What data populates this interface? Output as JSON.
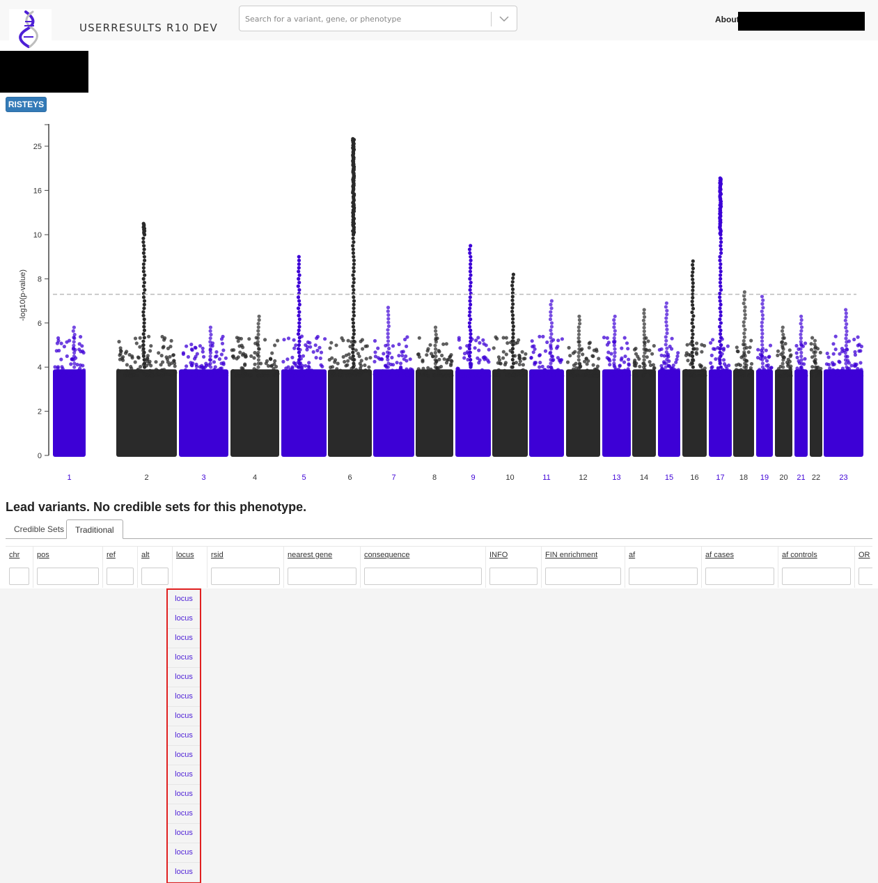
{
  "header": {
    "app_title": "USERRESULTS R10 DEV",
    "search_placeholder": "Search for a variant, gene, or phenotype",
    "about_label": "About"
  },
  "risteys_label": "RISTEYS",
  "chart_data": {
    "type": "scatter",
    "title": "",
    "ylabel": "-log10(p-value)",
    "xlabel": "",
    "y_tick_labels": [
      "0",
      "2",
      "4",
      "6",
      "8",
      "10",
      "16",
      "25"
    ],
    "significance_line": 7.3,
    "chromosomes": [
      "1",
      "2",
      "3",
      "4",
      "5",
      "6",
      "7",
      "8",
      "9",
      "10",
      "11",
      "12",
      "13",
      "14",
      "15",
      "16",
      "17",
      "18",
      "19",
      "20",
      "21",
      "22",
      "23"
    ],
    "series_colors": {
      "odd": "#3d00d6",
      "even": "#2a2a2a"
    },
    "peaks": [
      {
        "chr": "1",
        "max": 5.8
      },
      {
        "chr": "2",
        "max": 11.5
      },
      {
        "chr": "3",
        "max": 5.8
      },
      {
        "chr": "4",
        "max": 6.3
      },
      {
        "chr": "5",
        "max": 9.0
      },
      {
        "chr": "6",
        "max": 26.5
      },
      {
        "chr": "7",
        "max": 6.7
      },
      {
        "chr": "8",
        "max": 5.8
      },
      {
        "chr": "9",
        "max": 9.5
      },
      {
        "chr": "10",
        "max": 8.2
      },
      {
        "chr": "11",
        "max": 7.0
      },
      {
        "chr": "12",
        "max": 6.3
      },
      {
        "chr": "13",
        "max": 6.3
      },
      {
        "chr": "14",
        "max": 6.6
      },
      {
        "chr": "15",
        "max": 6.9
      },
      {
        "chr": "16",
        "max": 8.8
      },
      {
        "chr": "17",
        "max": 18.5
      },
      {
        "chr": "18",
        "max": 7.4
      },
      {
        "chr": "19",
        "max": 7.2
      },
      {
        "chr": "20",
        "max": 5.8
      },
      {
        "chr": "21",
        "max": 6.3
      },
      {
        "chr": "22",
        "max": 5.2
      },
      {
        "chr": "23",
        "max": 6.6
      }
    ]
  },
  "section_heading": "Lead variants. No credible sets for this phenotype.",
  "tabs": [
    "Credible Sets",
    "Traditional"
  ],
  "table": {
    "columns": [
      "chr",
      "pos",
      "ref",
      "alt",
      "locus",
      "rsid",
      "nearest gene",
      "consequence",
      "INFO",
      "FIN enrichment",
      "af",
      "af cases",
      "af controls",
      "OR"
    ],
    "rows": [
      "locus",
      "locus",
      "locus",
      "locus",
      "locus",
      "locus",
      "locus",
      "locus",
      "locus",
      "locus",
      "locus",
      "locus",
      "locus",
      "locus",
      "locus"
    ]
  }
}
